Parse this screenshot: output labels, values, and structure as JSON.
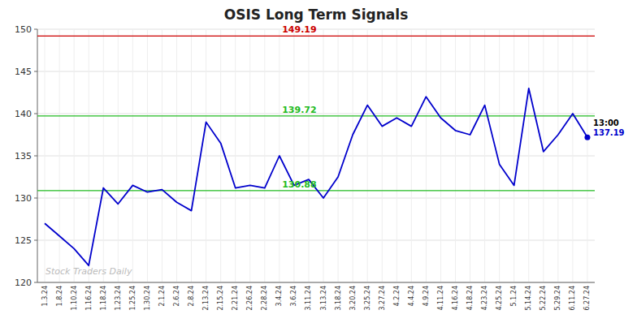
{
  "chart_data": {
    "type": "line",
    "title": "OSIS Long Term Signals",
    "categories": [
      "1.3.24",
      "1.8.24",
      "1.10.24",
      "1.16.24",
      "1.18.24",
      "1.23.24",
      "1.25.24",
      "1.30.24",
      "2.1.24",
      "2.6.24",
      "2.8.24",
      "2.13.24",
      "2.15.24",
      "2.21.24",
      "2.26.24",
      "2.28.24",
      "3.4.24",
      "3.6.24",
      "3.11.24",
      "3.13.24",
      "3.18.24",
      "3.20.24",
      "3.25.24",
      "3.27.24",
      "4.2.24",
      "4.4.24",
      "4.9.24",
      "4.11.24",
      "4.16.24",
      "4.18.24",
      "4.23.24",
      "4.25.24",
      "5.1.24",
      "5.14.24",
      "5.22.24",
      "5.29.24",
      "6.11.24",
      "6.27.24"
    ],
    "values": [
      127.0,
      125.5,
      124.0,
      122.0,
      131.2,
      129.3,
      131.5,
      130.7,
      131.0,
      129.5,
      128.5,
      139.0,
      136.5,
      131.2,
      131.5,
      131.2,
      135.0,
      131.5,
      132.2,
      130.0,
      132.5,
      137.5,
      141.0,
      138.5,
      139.5,
      138.5,
      142.0,
      139.5,
      138.0,
      137.5,
      141.0,
      134.0,
      131.5,
      143.0,
      135.5,
      137.5,
      140.0,
      137.19
    ],
    "color": "#0000cc",
    "reference_lines": [
      {
        "value": 149.19,
        "color": "#cc0000"
      },
      {
        "value": 139.72,
        "color": "#22bb22"
      },
      {
        "value": 130.88,
        "color": "#22bb22"
      }
    ],
    "annotations": [
      "Stock Traders Daily",
      "13:00"
    ],
    "ylim": [
      120,
      150
    ],
    "yticks": [
      120,
      125,
      130,
      135,
      140,
      145,
      150
    ],
    "grid": true
  }
}
